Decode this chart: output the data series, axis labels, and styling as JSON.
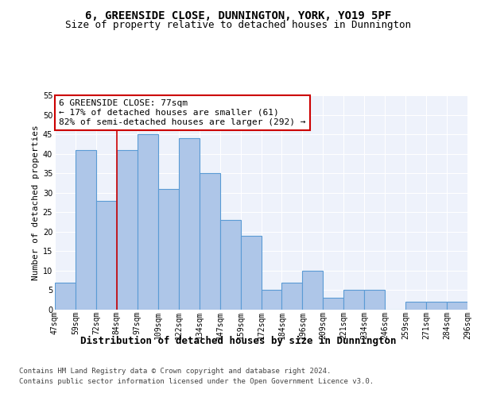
{
  "title": "6, GREENSIDE CLOSE, DUNNINGTON, YORK, YO19 5PF",
  "subtitle": "Size of property relative to detached houses in Dunnington",
  "xlabel": "Distribution of detached houses by size in Dunnington",
  "ylabel": "Number of detached properties",
  "bar_values": [
    7,
    41,
    28,
    41,
    45,
    31,
    44,
    35,
    23,
    19,
    5,
    7,
    10,
    3,
    5,
    5,
    0,
    2,
    2,
    2
  ],
  "bin_labels": [
    "47sqm",
    "59sqm",
    "72sqm",
    "84sqm",
    "97sqm",
    "109sqm",
    "122sqm",
    "134sqm",
    "147sqm",
    "159sqm",
    "172sqm",
    "184sqm",
    "196sqm",
    "209sqm",
    "221sqm",
    "234sqm",
    "246sqm",
    "259sqm",
    "271sqm",
    "284sqm",
    "296sqm"
  ],
  "bar_color": "#aec6e8",
  "bar_edge_color": "#5b9bd5",
  "bar_edge_width": 0.8,
  "ylim": [
    0,
    55
  ],
  "yticks": [
    0,
    5,
    10,
    15,
    20,
    25,
    30,
    35,
    40,
    45,
    50,
    55
  ],
  "red_line_x": 2.5,
  "red_line_color": "#cc0000",
  "annotation_title": "6 GREENSIDE CLOSE: 77sqm",
  "annotation_line1": "← 17% of detached houses are smaller (61)",
  "annotation_line2": "82% of semi-detached houses are larger (292) →",
  "annotation_box_color": "#ffffff",
  "annotation_box_edge_color": "#cc0000",
  "footer_line1": "Contains HM Land Registry data © Crown copyright and database right 2024.",
  "footer_line2": "Contains public sector information licensed under the Open Government Licence v3.0.",
  "background_color": "#eef2fb",
  "grid_color": "#ffffff",
  "title_fontsize": 10,
  "subtitle_fontsize": 9,
  "ylabel_fontsize": 8,
  "xlabel_fontsize": 9,
  "tick_fontsize": 7,
  "annotation_fontsize": 8,
  "footer_fontsize": 6.5
}
